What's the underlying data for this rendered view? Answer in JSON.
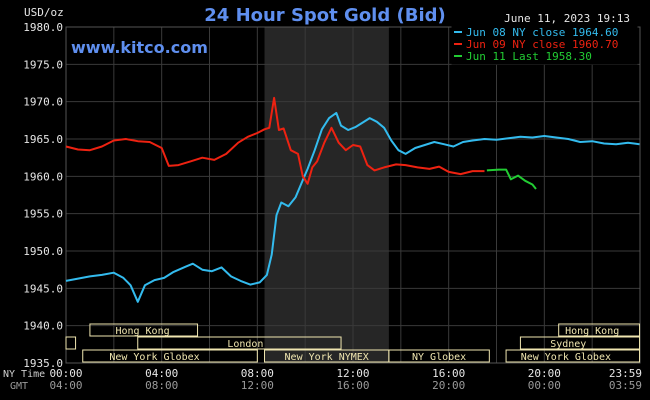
{
  "chart_data": {
    "type": "line",
    "title": "24 Hour Spot Gold (Bid)",
    "watermark": "www.kitco.com",
    "timestamp": "June 11, 2023 19:13",
    "ylabel": "USD/oz",
    "ylim": [
      1935,
      1980
    ],
    "y_ticks": [
      "1980.0",
      "1975.0",
      "1970.0",
      "1965.0",
      "1960.0",
      "1955.0",
      "1950.0",
      "1945.0",
      "1940.0",
      "1935.0"
    ],
    "y_tick_values": [
      1980,
      1975,
      1970,
      1965,
      1960,
      1955,
      1950,
      1945,
      1940,
      1935
    ],
    "xlim": [
      0,
      24
    ],
    "x_ticks": [
      "00:00",
      "04:00",
      "08:00",
      "12:00",
      "16:00",
      "20:00",
      "23:59"
    ],
    "x_ticks_gmt": [
      "04:00",
      "08:00",
      "12:00",
      "16:00",
      "20:00",
      "00:00",
      "03:59"
    ],
    "x_tick_hours": [
      0,
      4,
      8,
      12,
      16,
      20,
      23.98
    ],
    "x_row_label_1": "NY Time",
    "x_row_label_2": "GMT",
    "grid": true,
    "legend_position": "top-right",
    "highlight_band": [
      8.3,
      13.5
    ],
    "colors": {
      "background": "#000000",
      "grid": "#3a3a3a",
      "band": "#262626",
      "title": "#5f8fef",
      "watermark": "#5f8fef",
      "text": "#e6e6e6",
      "session": "#f0e6b0"
    },
    "series": [
      {
        "name": "Jun 08 NY close 1964.60",
        "color": "#33bbee",
        "points": [
          [
            0,
            1946
          ],
          [
            0.5,
            1946.3
          ],
          [
            1,
            1946.6
          ],
          [
            1.5,
            1946.8
          ],
          [
            2,
            1947.1
          ],
          [
            2.4,
            1946.4
          ],
          [
            2.7,
            1945.4
          ],
          [
            3.0,
            1943.2
          ],
          [
            3.3,
            1945.4
          ],
          [
            3.7,
            1946.1
          ],
          [
            4.1,
            1946.4
          ],
          [
            4.5,
            1947.2
          ],
          [
            5.0,
            1947.9
          ],
          [
            5.3,
            1948.3
          ],
          [
            5.7,
            1947.5
          ],
          [
            6.1,
            1947.3
          ],
          [
            6.5,
            1947.8
          ],
          [
            6.9,
            1946.6
          ],
          [
            7.3,
            1946.0
          ],
          [
            7.7,
            1945.5
          ],
          [
            8.1,
            1945.8
          ],
          [
            8.4,
            1946.8
          ],
          [
            8.6,
            1949.5
          ],
          [
            8.8,
            1954.8
          ],
          [
            9.0,
            1956.5
          ],
          [
            9.3,
            1956.0
          ],
          [
            9.6,
            1957.2
          ],
          [
            9.9,
            1959.5
          ],
          [
            10.1,
            1961.0
          ],
          [
            10.4,
            1963.5
          ],
          [
            10.7,
            1966.3
          ],
          [
            11.0,
            1967.8
          ],
          [
            11.3,
            1968.5
          ],
          [
            11.5,
            1966.8
          ],
          [
            11.8,
            1966.2
          ],
          [
            12.1,
            1966.6
          ],
          [
            12.4,
            1967.2
          ],
          [
            12.7,
            1967.8
          ],
          [
            13.0,
            1967.3
          ],
          [
            13.3,
            1966.5
          ],
          [
            13.6,
            1964.8
          ],
          [
            13.9,
            1963.5
          ],
          [
            14.2,
            1963.0
          ],
          [
            14.6,
            1963.8
          ],
          [
            15.0,
            1964.2
          ],
          [
            15.4,
            1964.6
          ],
          [
            15.8,
            1964.3
          ],
          [
            16.2,
            1964.0
          ],
          [
            16.6,
            1964.6
          ],
          [
            17.0,
            1964.8
          ],
          [
            17.5,
            1965.0
          ],
          [
            18.0,
            1964.9
          ],
          [
            18.5,
            1965.1
          ],
          [
            19.0,
            1965.3
          ],
          [
            19.5,
            1965.2
          ],
          [
            20.0,
            1965.4
          ],
          [
            20.5,
            1965.2
          ],
          [
            21.0,
            1965.0
          ],
          [
            21.5,
            1964.6
          ],
          [
            22.0,
            1964.7
          ],
          [
            22.5,
            1964.4
          ],
          [
            23.0,
            1964.3
          ],
          [
            23.5,
            1964.5
          ],
          [
            23.98,
            1964.3
          ]
        ]
      },
      {
        "name": "Jun 09 NY close 1960.70",
        "color": "#ee2211",
        "points": [
          [
            0,
            1964.0
          ],
          [
            0.5,
            1963.6
          ],
          [
            1,
            1963.5
          ],
          [
            1.5,
            1964.0
          ],
          [
            2,
            1964.8
          ],
          [
            2.5,
            1965.0
          ],
          [
            3,
            1964.7
          ],
          [
            3.5,
            1964.6
          ],
          [
            4.0,
            1963.8
          ],
          [
            4.3,
            1961.4
          ],
          [
            4.7,
            1961.5
          ],
          [
            5.2,
            1962.0
          ],
          [
            5.7,
            1962.5
          ],
          [
            6.2,
            1962.2
          ],
          [
            6.7,
            1963.0
          ],
          [
            7.2,
            1964.5
          ],
          [
            7.6,
            1965.3
          ],
          [
            8.0,
            1965.8
          ],
          [
            8.3,
            1966.3
          ],
          [
            8.5,
            1966.5
          ],
          [
            8.7,
            1970.5
          ],
          [
            8.9,
            1966.2
          ],
          [
            9.1,
            1966.4
          ],
          [
            9.4,
            1963.5
          ],
          [
            9.7,
            1963.0
          ],
          [
            9.9,
            1960.0
          ],
          [
            10.1,
            1959.0
          ],
          [
            10.3,
            1961.2
          ],
          [
            10.5,
            1962.0
          ],
          [
            10.8,
            1964.5
          ],
          [
            11.1,
            1966.5
          ],
          [
            11.4,
            1964.5
          ],
          [
            11.7,
            1963.5
          ],
          [
            12.0,
            1964.2
          ],
          [
            12.3,
            1964.0
          ],
          [
            12.6,
            1961.5
          ],
          [
            12.9,
            1960.8
          ],
          [
            13.3,
            1961.2
          ],
          [
            13.8,
            1961.6
          ],
          [
            14.2,
            1961.5
          ],
          [
            14.7,
            1961.2
          ],
          [
            15.2,
            1961.0
          ],
          [
            15.6,
            1961.3
          ],
          [
            16.0,
            1960.6
          ],
          [
            16.5,
            1960.3
          ],
          [
            17.0,
            1960.7
          ],
          [
            17.5,
            1960.7
          ]
        ]
      },
      {
        "name": "Jun 11 Last 1958.30",
        "color": "#22cc33",
        "points": [
          [
            17.6,
            1960.8
          ],
          [
            18.1,
            1960.9
          ],
          [
            18.4,
            1960.9
          ],
          [
            18.6,
            1959.6
          ],
          [
            18.9,
            1960.1
          ],
          [
            19.2,
            1959.4
          ],
          [
            19.5,
            1958.9
          ],
          [
            19.65,
            1958.3
          ]
        ]
      }
    ],
    "session_bars": [
      {
        "label": "Hong Kong",
        "row": 1,
        "start": 1.0,
        "end": 5.5,
        "label_at": 3.2
      },
      {
        "label": "Hong Kong",
        "row": 1,
        "start": 20.6,
        "end": 23.98,
        "label_at": 22.0
      },
      {
        "label": "London",
        "row": 2,
        "start": 3.0,
        "end": 11.5,
        "label_at": 7.5
      },
      {
        "label": "Sydney",
        "row": 2,
        "start": 19.0,
        "end": 23.98,
        "label_at": 21.0
      },
      {
        "label": "",
        "row": 2,
        "start": 0,
        "end": 0.4,
        "label_at": 0.2
      },
      {
        "label": "New York Globex",
        "row": 3,
        "start": 0.7,
        "end": 8.0,
        "label_at": 3.7
      },
      {
        "label": "New York NYMEX",
        "row": 3,
        "start": 8.3,
        "end": 13.5,
        "label_at": 10.9
      },
      {
        "label": "NY Globex",
        "row": 3,
        "start": 13.5,
        "end": 17.7,
        "label_at": 15.6
      },
      {
        "label": "New York Globex",
        "row": 3,
        "start": 18.4,
        "end": 23.98,
        "label_at": 20.9
      }
    ]
  }
}
